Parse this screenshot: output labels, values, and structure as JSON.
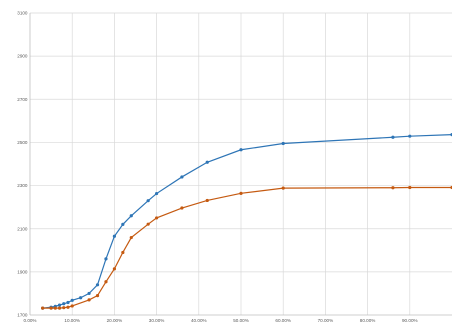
{
  "chart_data": {
    "type": "line",
    "title": "",
    "xlabel": "",
    "ylabel": "",
    "xlim": [
      0,
      100
    ],
    "ylim": [
      1700,
      3100
    ],
    "x_ticks": [
      0,
      10,
      20,
      30,
      40,
      50,
      60,
      70,
      80,
      90
    ],
    "x_tick_labels": [
      "0.00%",
      "10.00%",
      "20.00%",
      "30.00%",
      "40.00%",
      "50.00%",
      "60.00%",
      "70.00%",
      "80.00%",
      "90.00%"
    ],
    "y_ticks": [
      1700,
      1900,
      2100,
      2300,
      2500,
      2700,
      2900,
      3100
    ],
    "y_tick_labels": [
      "1700",
      "1900",
      "2100",
      "2300",
      "2500",
      "2700",
      "2900",
      "3100"
    ],
    "grid": true,
    "legend": "none",
    "series": [
      {
        "color": "#2e75b6",
        "points": [
          [
            3,
            1732
          ],
          [
            5,
            1736
          ],
          [
            6,
            1740
          ],
          [
            7,
            1746
          ],
          [
            8,
            1752
          ],
          [
            9,
            1758
          ],
          [
            10,
            1768
          ],
          [
            12,
            1780
          ],
          [
            14,
            1800
          ],
          [
            16,
            1840
          ],
          [
            18,
            1960
          ],
          [
            20,
            2065
          ],
          [
            22,
            2120
          ],
          [
            24,
            2160
          ],
          [
            28,
            2230
          ],
          [
            30,
            2263
          ],
          [
            36,
            2340
          ],
          [
            42,
            2408
          ],
          [
            50,
            2466
          ],
          [
            60,
            2495
          ],
          [
            86,
            2524
          ],
          [
            90,
            2529
          ],
          [
            100,
            2536
          ]
        ]
      },
      {
        "color": "#c55a11",
        "points": [
          [
            3,
            1732
          ],
          [
            5,
            1732
          ],
          [
            6,
            1732
          ],
          [
            7,
            1732
          ],
          [
            8,
            1734
          ],
          [
            9,
            1736
          ],
          [
            10,
            1742
          ],
          [
            14,
            1770
          ],
          [
            16,
            1790
          ],
          [
            18,
            1854
          ],
          [
            20,
            1914
          ],
          [
            22,
            1990
          ],
          [
            24,
            2059
          ],
          [
            28,
            2121
          ],
          [
            30,
            2150
          ],
          [
            36,
            2196
          ],
          [
            42,
            2231
          ],
          [
            50,
            2264
          ],
          [
            60,
            2288
          ],
          [
            86,
            2290
          ],
          [
            90,
            2291
          ],
          [
            100,
            2291
          ]
        ]
      }
    ]
  }
}
